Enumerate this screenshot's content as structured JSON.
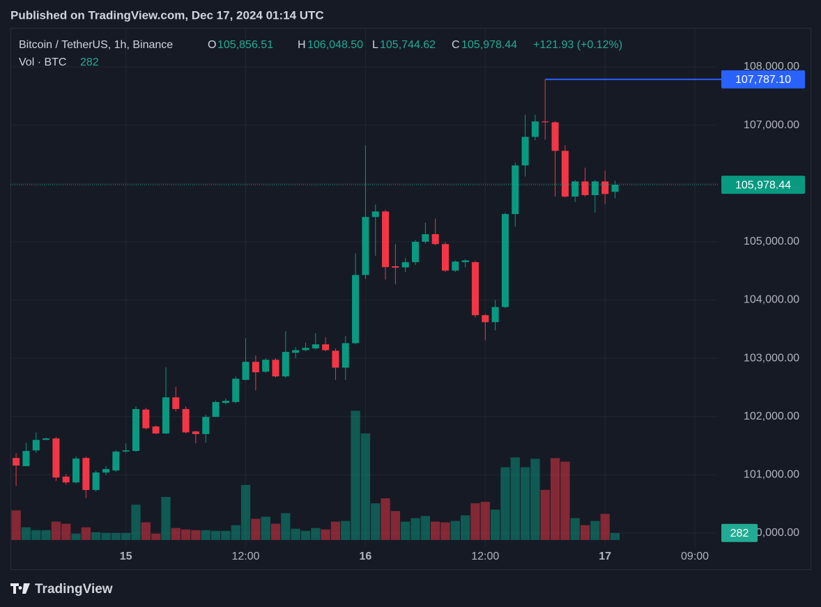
{
  "header": {
    "published": "Published on TradingView.com, Dec 17, 2024 01:14 UTC",
    "logo": "TradingView"
  },
  "legend": {
    "symbol": "Bitcoin / TetherUS, 1h, Binance",
    "open_key": "O",
    "open": "105,856.51",
    "high_key": "H",
    "high": "106,048.50",
    "low_key": "L",
    "low": "105,744.62",
    "close_key": "C",
    "close": "105,978.44",
    "change": "+121.93 (+0.12%)",
    "volume_key": "Vol · BTC",
    "volume": "282"
  },
  "chart_data": {
    "type": "candlestick",
    "x": [
      "2024-12-14T13:00",
      "2024-12-14T14:00",
      "2024-12-14T15:00",
      "2024-12-14T16:00",
      "2024-12-14T17:00",
      "2024-12-14T18:00",
      "2024-12-14T19:00",
      "2024-12-14T20:00",
      "2024-12-14T21:00",
      "2024-12-14T22:00",
      "2024-12-14T23:00",
      "2024-12-15T00:00",
      "2024-12-15T01:00",
      "2024-12-15T02:00",
      "2024-12-15T03:00",
      "2024-12-15T04:00",
      "2024-12-15T05:00",
      "2024-12-15T06:00",
      "2024-12-15T07:00",
      "2024-12-15T08:00",
      "2024-12-15T09:00",
      "2024-12-15T10:00",
      "2024-12-15T11:00",
      "2024-12-15T12:00",
      "2024-12-15T13:00",
      "2024-12-15T14:00",
      "2024-12-15T15:00",
      "2024-12-15T16:00",
      "2024-12-15T17:00",
      "2024-12-15T18:00",
      "2024-12-15T19:00",
      "2024-12-15T20:00",
      "2024-12-15T21:00",
      "2024-12-15T22:00",
      "2024-12-15T23:00",
      "2024-12-16T00:00",
      "2024-12-16T01:00",
      "2024-12-16T02:00",
      "2024-12-16T03:00",
      "2024-12-16T04:00",
      "2024-12-16T05:00",
      "2024-12-16T06:00",
      "2024-12-16T07:00",
      "2024-12-16T08:00",
      "2024-12-16T09:00",
      "2024-12-16T10:00",
      "2024-12-16T11:00",
      "2024-12-16T12:00",
      "2024-12-16T13:00",
      "2024-12-16T14:00",
      "2024-12-16T15:00",
      "2024-12-16T16:00",
      "2024-12-16T17:00",
      "2024-12-16T18:00",
      "2024-12-16T19:00",
      "2024-12-16T20:00",
      "2024-12-16T21:00",
      "2024-12-16T22:00",
      "2024-12-16T23:00",
      "2024-12-17T00:00",
      "2024-12-17T01:00"
    ],
    "open": [
      101290,
      101150,
      101420,
      101600,
      101625,
      100970,
      100870,
      101290,
      100740,
      101040,
      101075,
      101400,
      101410,
      102120,
      101830,
      101710,
      102330,
      102130,
      101745,
      101700,
      101995,
      102235,
      102250,
      102630,
      102940,
      102770,
      102975,
      102690,
      103095,
      103140,
      103170,
      103240,
      103130,
      102840,
      103260,
      104430,
      105425,
      105520,
      104580,
      104560,
      104650,
      105000,
      105130,
      104960,
      104505,
      104650,
      104650,
      103740,
      103620,
      103880,
      105475,
      106310,
      106800,
      107065,
      107050,
      106560,
      105775,
      106035,
      105800,
      106035,
      105856.51
    ],
    "high": [
      101375,
      101555,
      101730,
      101640,
      101650,
      101015,
      101315,
      101315,
      101075,
      101150,
      101425,
      101540,
      102175,
      102150,
      101850,
      102845,
      102510,
      102175,
      101760,
      102030,
      102275,
      102310,
      102690,
      103345,
      103050,
      103000,
      103000,
      103465,
      103190,
      103270,
      103430,
      103360,
      103170,
      103380,
      104800,
      106655,
      105640,
      105550,
      104960,
      104720,
      105030,
      105330,
      105400,
      105000,
      104680,
      104700,
      104670,
      103760,
      104000,
      105500,
      106360,
      107180,
      107180,
      107787.1,
      107070,
      106655,
      106060,
      106270,
      106060,
      106220,
      106048.5
    ],
    "low": [
      100810,
      101150,
      101375,
      101600,
      100895,
      100835,
      100850,
      100600,
      100715,
      101000,
      101050,
      101380,
      101400,
      101780,
      101700,
      101700,
      102090,
      101710,
      101540,
      101550,
      101990,
      102210,
      102230,
      102620,
      102450,
      102750,
      102670,
      102665,
      103000,
      103120,
      103150,
      103120,
      102630,
      102630,
      103240,
      104360,
      104760,
      104350,
      104270,
      104480,
      104600,
      104970,
      104940,
      104480,
      104480,
      104560,
      103700,
      103310,
      103480,
      103860,
      105260,
      106120,
      106740,
      106750,
      105775,
      105760,
      105680,
      105775,
      105500,
      105650,
      105744.62
    ],
    "close": [
      101160,
      101410,
      101600,
      101625,
      100955,
      100870,
      101280,
      100740,
      101040,
      101100,
      101400,
      101420,
      102130,
      101800,
      101710,
      102330,
      102130,
      101730,
      101700,
      101995,
      102250,
      102270,
      102650,
      102940,
      102760,
      102975,
      102690,
      103110,
      103140,
      103180,
      103240,
      103140,
      102840,
      103260,
      104430,
      105425,
      105520,
      104565,
      104555,
      104650,
      105000,
      105130,
      104960,
      104505,
      104660,
      104680,
      103740,
      103620,
      103880,
      105475,
      106310,
      106800,
      107065,
      107050,
      106560,
      105775,
      106035,
      105800,
      106035,
      105820,
      105978.44
    ],
    "volume": [
      1184,
      508,
      395,
      395,
      733,
      649,
      254,
      508,
      310,
      282,
      282,
      282,
      1410,
      705,
      254,
      1720,
      479,
      423,
      395,
      395,
      367,
      367,
      592,
      2200,
      846,
      931,
      649,
      1072,
      451,
      367,
      479,
      423,
      733,
      761,
      5161,
      4258,
      1466,
      1664,
      1156,
      733,
      874,
      959,
      733,
      705,
      761,
      987,
      1466,
      1523,
      1213,
      2905,
      3299,
      2905,
      3243,
      2002,
      3271,
      3130,
      874,
      592,
      761,
      1043,
      282
    ],
    "high_label": "107,787.10",
    "up_color": "#089981",
    "down_color": "#f23645",
    "high_line_color": "#2962ff",
    "xlim": [
      "2024-12-14T12:26",
      "2024-12-17T11:18"
    ],
    "xticks": [
      {
        "value": "2024-12-15T00:00",
        "label": "15"
      },
      {
        "value": "2024-12-15T12:00",
        "label": "12:00"
      },
      {
        "value": "2024-12-16T00:00",
        "label": "16"
      },
      {
        "value": "2024-12-16T12:00",
        "label": "12:00"
      },
      {
        "value": "2024-12-17T00:00",
        "label": "17"
      },
      {
        "value": "2024-12-17T09:00",
        "label": "09:00"
      }
    ],
    "ylim": [
      99761,
      108670
    ],
    "yticks": [
      {
        "value": 100000,
        "label": "100,000.00"
      },
      {
        "value": 101000,
        "label": "101,000.00"
      },
      {
        "value": 102000,
        "label": "102,000.00"
      },
      {
        "value": 103000,
        "label": "103,000.00"
      },
      {
        "value": 104000,
        "label": "104,000.00"
      },
      {
        "value": 105000,
        "label": "105,000.00"
      },
      {
        "value": 106000,
        "label": "106,000.00"
      },
      {
        "value": 107000,
        "label": "107,000.00"
      },
      {
        "value": 108000,
        "label": "108,000.00"
      }
    ],
    "y2lim": [
      -282,
      20450
    ],
    "grid": true
  }
}
